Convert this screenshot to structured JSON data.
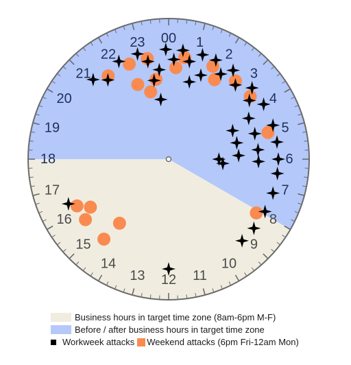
{
  "chart_data": {
    "type": "scatter",
    "subtype": "24-hour clock dial",
    "colors": {
      "business_hours": "#f0ede0",
      "off_hours": "#b4c8fa",
      "workweek": "#000000",
      "weekend": "#f98b50",
      "ring": "#6b6b6b",
      "hour_label_business": "#4a4a4a",
      "hour_label_off": "#1f2f57"
    },
    "hour_labels": [
      "00",
      "1",
      "2",
      "3",
      "4",
      "5",
      "6",
      "7",
      "8",
      "9",
      "10",
      "11",
      "12",
      "13",
      "14",
      "15",
      "16",
      "17",
      "18",
      "19",
      "20",
      "21",
      "22",
      "23"
    ],
    "business_hours_range": [
      8,
      18
    ],
    "workweek_attacks_hours": [
      23.9,
      0.2,
      0.5,
      0.8,
      1.0,
      1.2,
      1.4,
      1.7,
      2.1,
      2.4,
      2.8,
      3.3,
      3.6,
      4.0,
      4.2,
      4.4,
      4.8,
      4.9,
      5.1,
      5.4,
      5.6,
      5.8,
      6.0,
      6.0,
      6.1,
      6.3,
      6.5,
      7.2,
      7.9,
      8.6,
      9.2,
      12.0,
      16.4,
      21.1,
      21.5,
      22.2,
      22.9,
      23.2,
      23.3,
      23.5,
      23.6
    ],
    "weekend_attacks_hours": [
      23.2,
      23.4,
      22.5,
      22.5,
      21.6,
      23.0,
      0.6,
      0.3,
      1.7,
      2.0,
      2.7,
      3.5,
      5.0,
      8.1,
      15.6,
      15.9,
      14.6,
      14.5,
      16.2
    ],
    "legend": [
      {
        "label": "Business hours in target time zone (8am-6pm M-F)",
        "swatch": "business_hours"
      },
      {
        "label": "Before / after business hours in target time zone",
        "swatch": "off_hours"
      },
      {
        "label": "Workweek attacks",
        "swatch": "workweek"
      },
      {
        "label": "Weekend attacks (6pm Fri-12am Mon)",
        "swatch": "weekend"
      }
    ]
  }
}
